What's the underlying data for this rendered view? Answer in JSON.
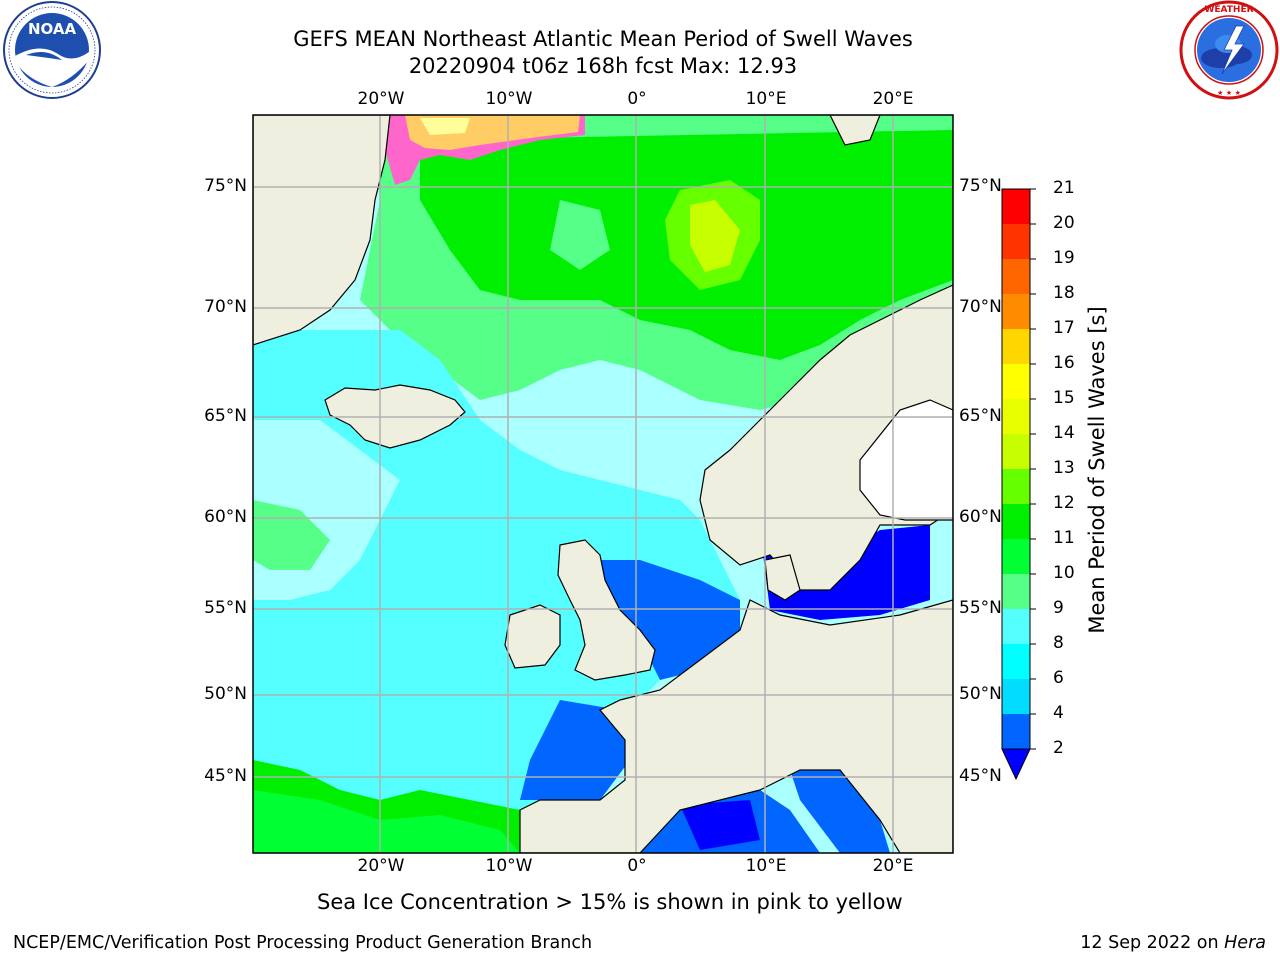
{
  "title": {
    "line1": "GEFS MEAN Northeast Atlantic Mean Period of Swell Waves",
    "line2": "20220904 t06z 168h fcst   Max: 12.93"
  },
  "logos": {
    "left": {
      "name": "NOAA",
      "text": "NOAA",
      "ring_text": "NATIONAL OCEANIC AND ATMOSPHERIC ADMINISTRATION · U.S. DEPARTMENT OF COMMERCE"
    },
    "right": {
      "name": "National Weather Service",
      "ring_text": "NATIONAL WEATHER SERVICE"
    }
  },
  "map": {
    "lon_labels_top": [
      "20°W",
      "10°W",
      "0°",
      "10°E",
      "20°E"
    ],
    "lon_labels_bottom": [
      "20°W",
      "10°W",
      "0°",
      "10°E",
      "20°E"
    ],
    "lat_labels": [
      "75°N",
      "70°N",
      "65°N",
      "60°N",
      "55°N",
      "50°N",
      "45°N"
    ],
    "gridline_color": "#b0b0b0",
    "land_color": "#efefdf"
  },
  "colorbar": {
    "label": "Mean Period of Swell Waves [s]",
    "ticks": [
      "21",
      "20",
      "19",
      "18",
      "17",
      "16",
      "15",
      "14",
      "13",
      "12",
      "11",
      "10",
      "9",
      "8",
      "6",
      "4",
      "2"
    ],
    "colors_top_to_bottom": [
      "#ff0000",
      "#ff3300",
      "#ff6600",
      "#ff8c00",
      "#ffb000",
      "#ffd700",
      "#ffff00",
      "#e8ff00",
      "#c8ff00",
      "#66ff00",
      "#00ee00",
      "#00ff33",
      "#55ff88",
      "#aaffff",
      "#55ffff",
      "#00ffff",
      "#00ddff",
      "#0066ff"
    ],
    "extend_color": "#0000ff"
  },
  "bottom_note": "Sea Ice Concentration > 15% is shown in pink to yellow",
  "footer": {
    "left": "NCEP/EMC/Verification Post Processing Product Generation Branch",
    "right_prefix": "12 Sep 2022 on ",
    "right_machine": "Hera"
  }
}
